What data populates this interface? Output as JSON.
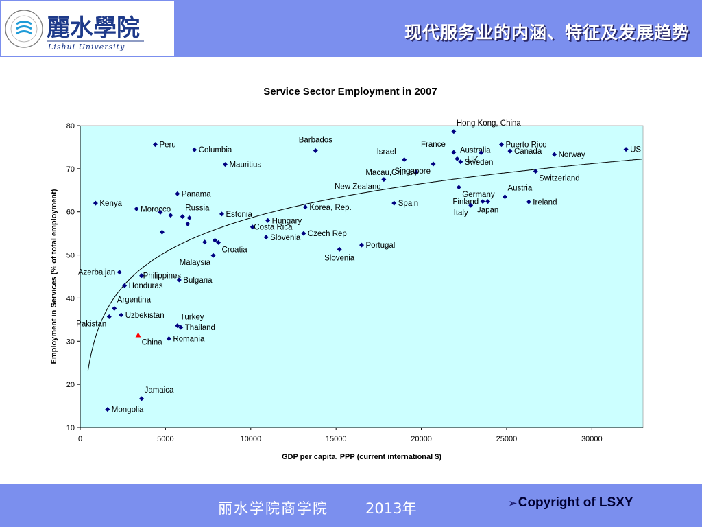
{
  "header": {
    "title": "现代服务业的内涵、特征及发展趋势",
    "logo_cn": "麗水學院",
    "logo_en": "Lishui University",
    "seal_text": "LISHUI UNIVERSITY"
  },
  "footer": {
    "org": "丽水学院商学院",
    "year": "2013年",
    "copyright": "Copyright of LSXY"
  },
  "colors": {
    "bar": "#7b8fee",
    "plot_bg": "#ccffff",
    "point": "#000080",
    "highlight": "#ff0000",
    "logo_blue": "#1e3a8a",
    "logo_cyan": "#1f9bd7"
  },
  "chart_data": {
    "type": "scatter",
    "title": "Service Sector Employment in 2007",
    "xlabel": "GDP per capita, PPP (current international $)",
    "ylabel": "Employment in Services  (% of total employment)",
    "xlim": [
      0,
      33000
    ],
    "ylim": [
      10,
      80
    ],
    "xticks": [
      0,
      5000,
      10000,
      15000,
      20000,
      25000,
      30000
    ],
    "yticks": [
      10,
      20,
      30,
      40,
      50,
      60,
      70,
      80
    ],
    "grid": false,
    "trendline": "logarithmic",
    "points": [
      {
        "x": 4400,
        "y": 75.6,
        "label": "Peru",
        "pos": "right"
      },
      {
        "x": 6700,
        "y": 74.4,
        "label": "Columbia",
        "pos": "right"
      },
      {
        "x": 8500,
        "y": 71.0,
        "label": "Mauritius",
        "pos": "right"
      },
      {
        "x": 13800,
        "y": 74.2,
        "label": "Barbados",
        "pos": "above"
      },
      {
        "x": 21900,
        "y": 78.6,
        "label": "Hong Kong, China",
        "pos": "above-right"
      },
      {
        "x": 19000,
        "y": 72.1,
        "label": "Israel",
        "pos": "above-left"
      },
      {
        "x": 21900,
        "y": 73.8,
        "label": "France",
        "pos": "above-left"
      },
      {
        "x": 22100,
        "y": 72.3,
        "label": "Australia",
        "pos": "above-right"
      },
      {
        "x": 22300,
        "y": 71.6,
        "label": "Sweden",
        "pos": "right"
      },
      {
        "x": 23500,
        "y": 73.7,
        "label": "UK",
        "pos": "below-left"
      },
      {
        "x": 24700,
        "y": 75.6,
        "label": "Puerto Rico",
        "pos": "right"
      },
      {
        "x": 25200,
        "y": 74.1,
        "label": "Canada",
        "pos": "right"
      },
      {
        "x": 27800,
        "y": 73.3,
        "label": "Norway",
        "pos": "right"
      },
      {
        "x": 32000,
        "y": 74.5,
        "label": "US",
        "pos": "right"
      },
      {
        "x": 26700,
        "y": 69.4,
        "label": "Switzerland",
        "pos": "below-right"
      },
      {
        "x": 19700,
        "y": 69.2,
        "label": "Macau,China",
        "pos": "left"
      },
      {
        "x": 20700,
        "y": 71.1,
        "label": "Singapore",
        "pos": "below-left"
      },
      {
        "x": 17800,
        "y": 67.5,
        "label": "New Zealand",
        "pos": "below-left"
      },
      {
        "x": 22200,
        "y": 65.7,
        "label": "Germany",
        "pos": "below-right"
      },
      {
        "x": 24900,
        "y": 63.5,
        "label": "Austria",
        "pos": "above-right"
      },
      {
        "x": 26300,
        "y": 62.3,
        "label": "Ireland",
        "pos": "right"
      },
      {
        "x": 23600,
        "y": 62.4,
        "label": "Finland",
        "pos": "left"
      },
      {
        "x": 23900,
        "y": 62.4,
        "label": "Japan",
        "pos": "below"
      },
      {
        "x": 22900,
        "y": 61.5,
        "label": "Italy",
        "pos": "below-left"
      },
      {
        "x": 18400,
        "y": 62.0,
        "label": "Spain",
        "pos": "right"
      },
      {
        "x": 13200,
        "y": 61.1,
        "label": "Korea, Rep.",
        "pos": "right"
      },
      {
        "x": 900,
        "y": 62.0,
        "label": "Kenya",
        "pos": "right"
      },
      {
        "x": 3300,
        "y": 60.7,
        "label": "Morocco",
        "pos": "right"
      },
      {
        "x": 5700,
        "y": 64.2,
        "label": "Panama",
        "pos": "right"
      },
      {
        "x": 4700,
        "y": 59.9,
        "label": "",
        "pos": "none"
      },
      {
        "x": 5300,
        "y": 59.2,
        "label": "",
        "pos": "none"
      },
      {
        "x": 6000,
        "y": 58.9,
        "label": "Russia",
        "pos": "above-right"
      },
      {
        "x": 6400,
        "y": 58.6,
        "label": "",
        "pos": "none"
      },
      {
        "x": 6300,
        "y": 57.2,
        "label": "",
        "pos": "none"
      },
      {
        "x": 4800,
        "y": 55.3,
        "label": "",
        "pos": "none"
      },
      {
        "x": 8300,
        "y": 59.5,
        "label": "Estonia",
        "pos": "right"
      },
      {
        "x": 11000,
        "y": 58.0,
        "label": "Hungary",
        "pos": "right"
      },
      {
        "x": 10100,
        "y": 56.5,
        "label": "Costa Rica",
        "pos": "right-tight"
      },
      {
        "x": 10900,
        "y": 54.1,
        "label": "Slovenia",
        "pos": "right"
      },
      {
        "x": 13100,
        "y": 55.0,
        "label": "Czech Rep",
        "pos": "right"
      },
      {
        "x": 7300,
        "y": 53.0,
        "label": "",
        "pos": "none"
      },
      {
        "x": 7900,
        "y": 53.4,
        "label": "",
        "pos": "none"
      },
      {
        "x": 8100,
        "y": 52.9,
        "label": "Croatia",
        "pos": "below-right"
      },
      {
        "x": 7800,
        "y": 49.9,
        "label": "Malaysia",
        "pos": "below-left"
      },
      {
        "x": 16500,
        "y": 52.3,
        "label": "Portugal",
        "pos": "right"
      },
      {
        "x": 15200,
        "y": 51.3,
        "label": "Slovenia",
        "pos": "below"
      },
      {
        "x": 2300,
        "y": 46.0,
        "label": "Azerbaijan",
        "pos": "left"
      },
      {
        "x": 3600,
        "y": 45.2,
        "label": "Philippines",
        "pos": "right-tight"
      },
      {
        "x": 5800,
        "y": 44.2,
        "label": "Bulgaria",
        "pos": "right"
      },
      {
        "x": 2600,
        "y": 42.9,
        "label": "Honduras",
        "pos": "right"
      },
      {
        "x": 2000,
        "y": 37.6,
        "label": "Argentina",
        "pos": "above-right"
      },
      {
        "x": 2400,
        "y": 36.1,
        "label": "Uzbekistan",
        "pos": "right"
      },
      {
        "x": 1700,
        "y": 35.7,
        "label": "Pakistan",
        "pos": "below-left"
      },
      {
        "x": 5700,
        "y": 33.6,
        "label": "Turkey",
        "pos": "above-right"
      },
      {
        "x": 5900,
        "y": 33.2,
        "label": "Thailand",
        "pos": "right"
      },
      {
        "x": 3400,
        "y": 31.4,
        "label": "China",
        "pos": "below-right",
        "highlight": true
      },
      {
        "x": 5200,
        "y": 30.6,
        "label": "Romania",
        "pos": "right"
      },
      {
        "x": 3600,
        "y": 16.7,
        "label": "Jamaica",
        "pos": "above-right"
      },
      {
        "x": 1600,
        "y": 14.2,
        "label": "Mongolia",
        "pos": "right"
      }
    ]
  }
}
